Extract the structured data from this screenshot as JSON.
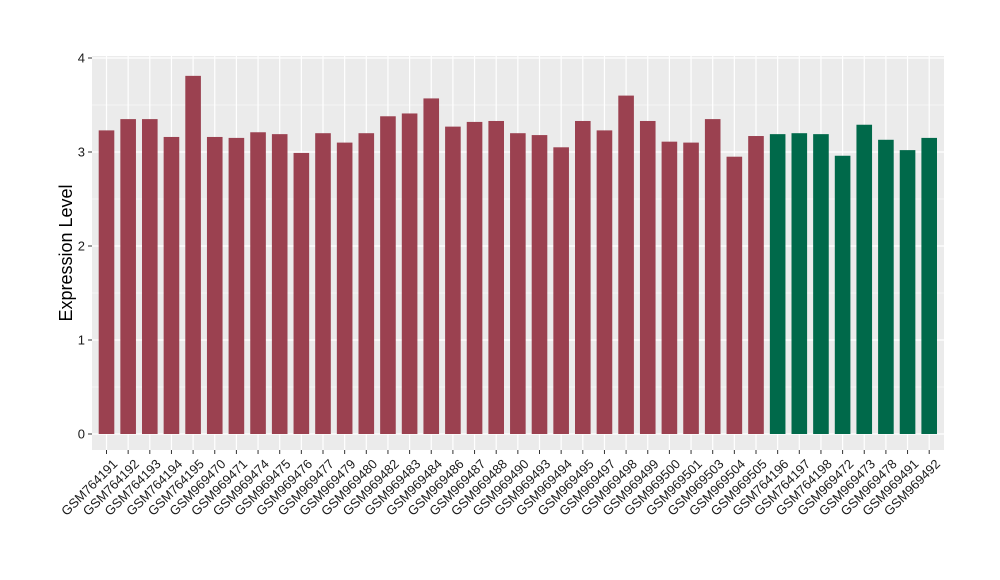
{
  "chart_data": {
    "type": "bar",
    "title": "",
    "xlabel": "",
    "ylabel": "Expression Level",
    "ylim": [
      -0.2,
      4.0
    ],
    "yticks": [
      0,
      1,
      2,
      3,
      4
    ],
    "grid": true,
    "panel_background": "#ebebeb",
    "grid_color": "#ffffff",
    "group_colors": {
      "group1": "#9b4150",
      "group2": "#00694a"
    },
    "categories": [
      "GSM764191",
      "GSM764192",
      "GSM764193",
      "GSM764194",
      "GSM764195",
      "GSM969470",
      "GSM969471",
      "GSM969474",
      "GSM969475",
      "GSM969476",
      "GSM969477",
      "GSM969479",
      "GSM969480",
      "GSM969482",
      "GSM969483",
      "GSM969484",
      "GSM969486",
      "GSM969487",
      "GSM969488",
      "GSM969490",
      "GSM969493",
      "GSM969494",
      "GSM969495",
      "GSM969497",
      "GSM969498",
      "GSM969499",
      "GSM969500",
      "GSM969501",
      "GSM969503",
      "GSM969504",
      "GSM969505",
      "GSM764196",
      "GSM764197",
      "GSM764198",
      "GSM969472",
      "GSM969473",
      "GSM969478",
      "GSM969491",
      "GSM969492"
    ],
    "values": [
      3.23,
      3.35,
      3.35,
      3.16,
      3.81,
      3.16,
      3.15,
      3.21,
      3.19,
      2.99,
      3.2,
      3.1,
      3.2,
      3.38,
      3.41,
      3.57,
      3.27,
      3.32,
      3.33,
      3.2,
      3.18,
      3.05,
      3.33,
      3.23,
      3.6,
      3.33,
      3.11,
      3.1,
      3.35,
      2.95,
      3.17,
      3.19,
      3.2,
      3.19,
      2.96,
      3.29,
      3.13,
      3.02,
      3.15
    ],
    "groups": [
      "group1",
      "group1",
      "group1",
      "group1",
      "group1",
      "group1",
      "group1",
      "group1",
      "group1",
      "group1",
      "group1",
      "group1",
      "group1",
      "group1",
      "group1",
      "group1",
      "group1",
      "group1",
      "group1",
      "group1",
      "group1",
      "group1",
      "group1",
      "group1",
      "group1",
      "group1",
      "group1",
      "group1",
      "group1",
      "group1",
      "group1",
      "group2",
      "group2",
      "group2",
      "group2",
      "group2",
      "group2",
      "group2",
      "group2"
    ]
  }
}
